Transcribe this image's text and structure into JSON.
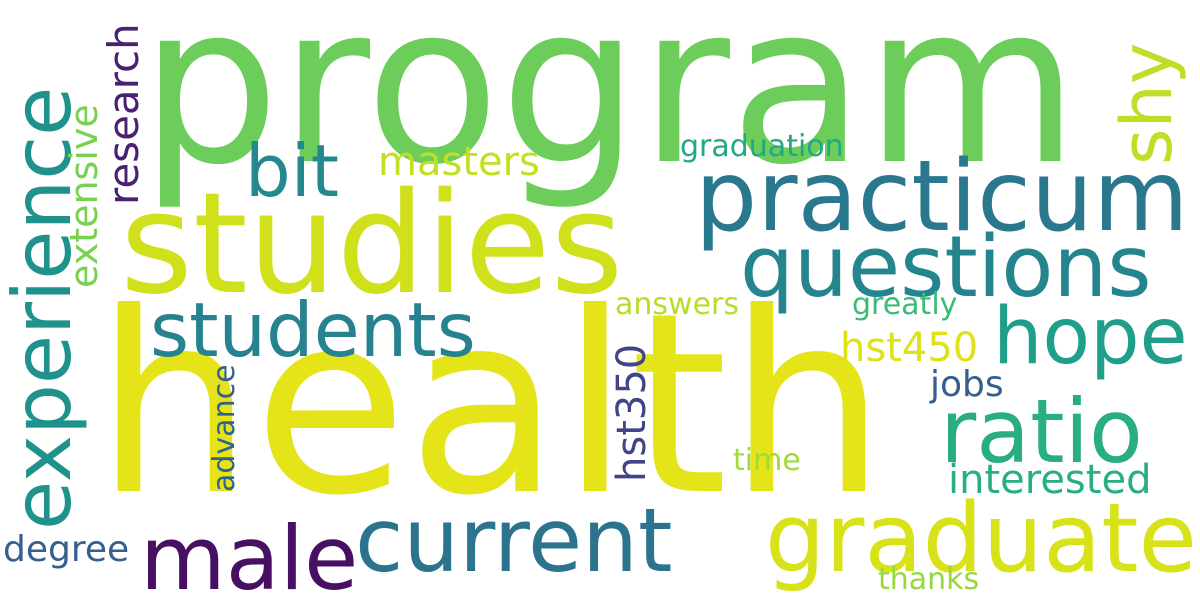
{
  "words": {
    "program": {
      "text": "program",
      "color": "#6ccd5a"
    },
    "health": {
      "text": "health",
      "color": "#e5e419"
    },
    "studies": {
      "text": "studies",
      "color": "#d0e11c"
    },
    "practicum": {
      "text": "practicum",
      "color": "#2a788e"
    },
    "questions": {
      "text": "questions",
      "color": "#25858e"
    },
    "graduates": {
      "text": "graduates",
      "color": "#d8e219"
    },
    "current": {
      "text": "current",
      "color": "#2c738e"
    },
    "male": {
      "text": "male",
      "color": "#471063"
    },
    "ratio": {
      "text": "ratio",
      "color": "#29af7f"
    },
    "hope": {
      "text": "hope",
      "color": "#1f9e89"
    },
    "students": {
      "text": "students",
      "color": "#26828e"
    },
    "bit": {
      "text": "bit",
      "color": "#23898e"
    },
    "experience": {
      "text": "experience",
      "color": "#20928c"
    },
    "shy": {
      "text": "shy",
      "color": "#bddf26"
    },
    "research": {
      "text": "research",
      "color": "#482173"
    },
    "extensive": {
      "text": "extensive",
      "color": "#7ad151"
    },
    "hst350": {
      "text": "hst350",
      "color": "#414487"
    },
    "masters": {
      "text": "masters",
      "color": "#c2df23"
    },
    "hst450": {
      "text": "hst450",
      "color": "#dde318"
    },
    "interested": {
      "text": "interested",
      "color": "#28ae80"
    },
    "degree": {
      "text": "degree",
      "color": "#355f8d"
    },
    "jobs": {
      "text": "jobs",
      "color": "#355e8d"
    },
    "advance": {
      "text": "advance",
      "color": "#33638d"
    },
    "graduation": {
      "text": "graduation",
      "color": "#22a884"
    },
    "greatly": {
      "text": "greatly",
      "color": "#3bbb75"
    },
    "answers": {
      "text": "answers",
      "color": "#b5de2b"
    },
    "time": {
      "text": "time",
      "color": "#a2da37"
    },
    "thanks": {
      "text": "thanks",
      "color": "#95d840"
    }
  }
}
